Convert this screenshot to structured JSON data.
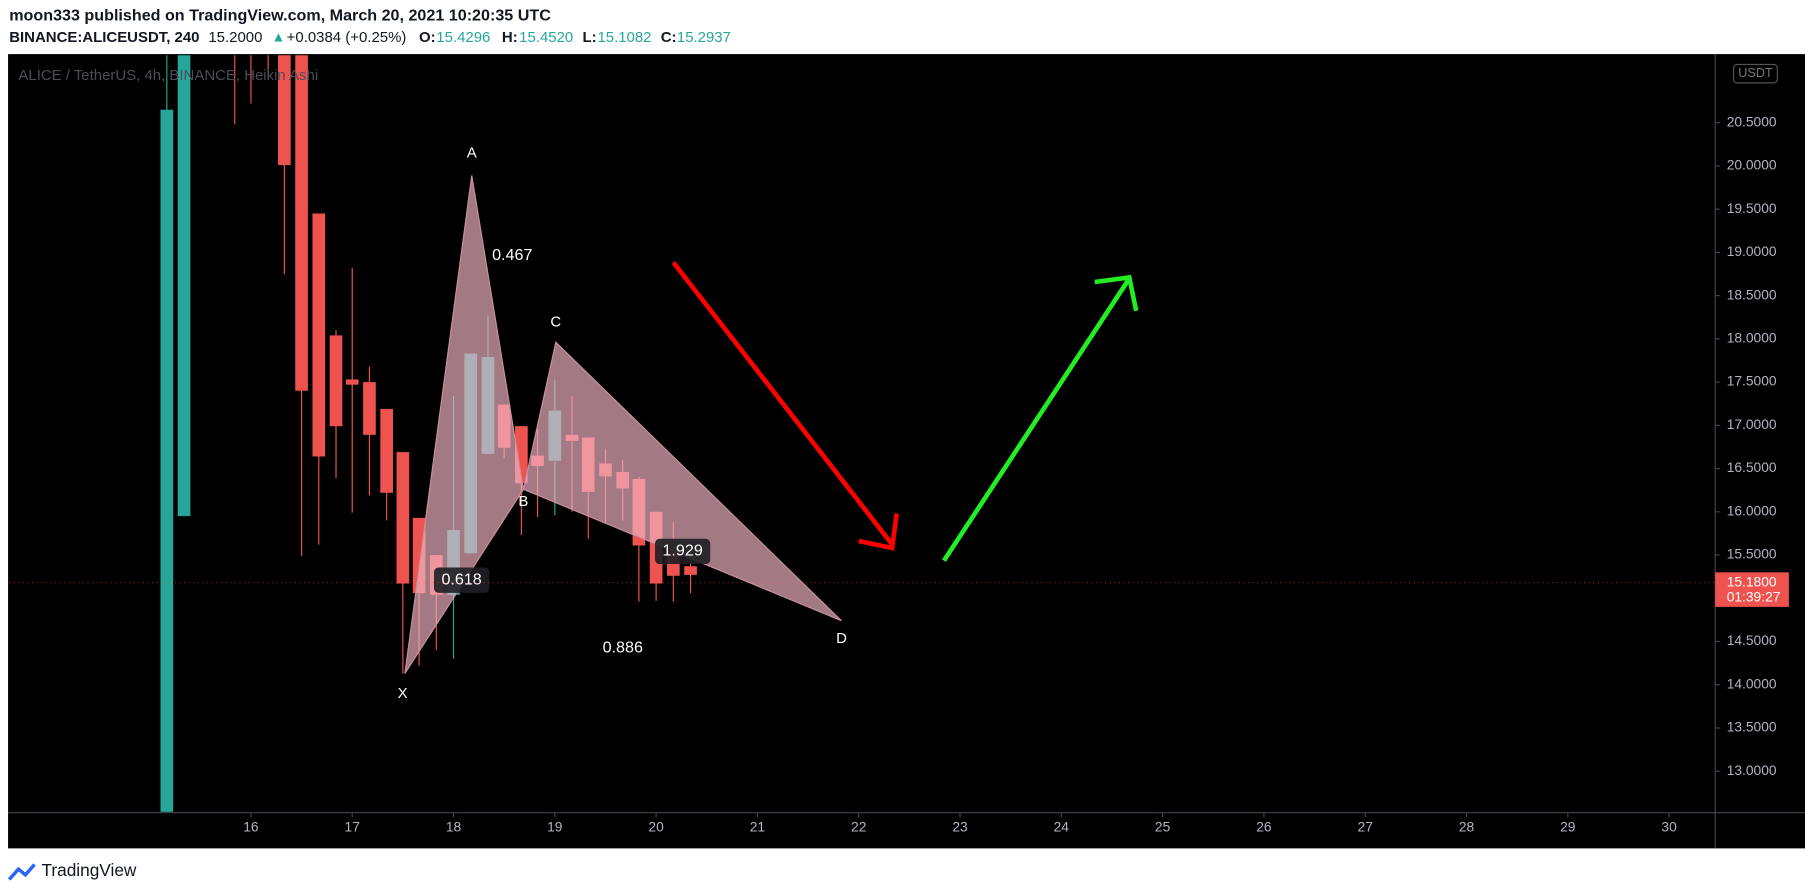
{
  "header": {
    "publisher": "moon333 published on TradingView.com, March 20, 2021 10:20:35 UTC",
    "symbol": "BINANCE:ALICEUSDT, 240",
    "last": "15.2000",
    "arrow": "▲",
    "change": "+0.0384 (+0.25%)",
    "o_key": "O:",
    "o": "15.4296",
    "h_key": "H:",
    "h": "15.4520",
    "l_key": "L:",
    "l": "15.1082",
    "c_key": "C:",
    "c": "15.2937"
  },
  "footer": {
    "brand": "TradingView"
  },
  "chart_data": {
    "type": "candlestick",
    "title": "ALICE / TetherUS, 4h, BINANCE, Heikin Ashi",
    "currency": "USDT",
    "up_color": "#26a69a",
    "down_color": "#ef5350",
    "x": [
      15.17,
      15.34,
      15.84,
      16.0,
      16.17,
      16.33,
      16.5,
      16.67,
      16.84,
      17.0,
      17.17,
      17.34,
      17.5,
      17.66,
      17.83,
      18.0,
      18.17,
      18.34,
      18.5,
      18.67,
      18.83,
      19.0,
      19.17,
      19.33,
      19.5,
      19.67,
      19.83,
      20.0,
      20.17,
      20.34
    ],
    "open": [
      12.53,
      15.95,
      22.0,
      22.0,
      22.0,
      21.8,
      21.5,
      19.45,
      18.04,
      17.53,
      17.5,
      17.19,
      16.69,
      15.93,
      15.5,
      15.04,
      15.52,
      16.67,
      17.24,
      16.99,
      16.65,
      16.59,
      16.89,
      16.86,
      16.56,
      16.46,
      16.38,
      16.0,
      15.57,
      15.37
    ],
    "high": [
      21.28,
      22.0,
      22.5,
      22.3,
      22.2,
      22.0,
      21.5,
      19.45,
      18.1,
      18.82,
      17.68,
      17.19,
      16.69,
      15.93,
      15.5,
      17.34,
      17.83,
      18.27,
      17.24,
      16.99,
      16.96,
      17.53,
      17.34,
      16.86,
      16.73,
      16.6,
      16.4,
      16.0,
      15.88,
      15.5
    ],
    "low": [
      12.53,
      15.95,
      20.48,
      20.72,
      21.0,
      18.75,
      15.49,
      15.62,
      16.39,
      15.99,
      16.19,
      15.9,
      14.13,
      14.22,
      14.4,
      14.3,
      15.52,
      16.67,
      16.62,
      15.73,
      15.94,
      15.96,
      16.0,
      15.69,
      15.87,
      15.9,
      14.96,
      14.97,
      14.96,
      15.06
    ],
    "close": [
      20.65,
      21.6,
      21.4,
      21.4,
      21.5,
      20.01,
      17.4,
      16.64,
      16.99,
      17.47,
      16.89,
      16.22,
      15.17,
      15.06,
      15.04,
      15.79,
      17.83,
      17.79,
      16.74,
      16.33,
      16.53,
      17.17,
      16.82,
      16.23,
      16.41,
      16.27,
      15.61,
      15.17,
      15.26,
      15.27
    ],
    "ylim": [
      12.52,
      21.28
    ],
    "yticks": [
      {
        "value": 13.0,
        "label": "13.0000"
      },
      {
        "value": 13.5,
        "label": "13.5000"
      },
      {
        "value": 14.0,
        "label": "14.0000"
      },
      {
        "value": 14.5,
        "label": "14.5000"
      },
      {
        "value": 15.0,
        "label": "15.0000"
      },
      {
        "value": 15.5,
        "label": "15.5000"
      },
      {
        "value": 16.0,
        "label": "16.0000"
      },
      {
        "value": 16.5,
        "label": "16.5000"
      },
      {
        "value": 17.0,
        "label": "17.0000"
      },
      {
        "value": 17.5,
        "label": "17.5000"
      },
      {
        "value": 18.0,
        "label": "18.0000"
      },
      {
        "value": 18.5,
        "label": "18.5000"
      },
      {
        "value": 19.0,
        "label": "19.0000"
      },
      {
        "value": 19.5,
        "label": "19.5000"
      },
      {
        "value": 20.0,
        "label": "20.0000"
      },
      {
        "value": 20.5,
        "label": "20.5000"
      }
    ],
    "xlim": [
      13.614,
      30.455
    ],
    "xticks": [
      16,
      17,
      18,
      19,
      20,
      21,
      22,
      23,
      24,
      25,
      26,
      27,
      28,
      29,
      30
    ],
    "price_tag": {
      "value": 15.18,
      "label": "15.1800",
      "countdown": "01:39:27"
    },
    "pattern": {
      "points": [
        {
          "label": "X",
          "x": 17.52,
          "price": 14.13
        },
        {
          "label": "A",
          "x": 18.18,
          "price": 19.89
        },
        {
          "label": "B",
          "x": 18.69,
          "price": 16.26
        },
        {
          "label": "C",
          "x": 19.01,
          "price": 17.96
        },
        {
          "label": "D",
          "x": 21.83,
          "price": 14.74
        }
      ],
      "ratios": [
        0.467,
        0.618,
        0.886,
        1.929
      ]
    }
  }
}
